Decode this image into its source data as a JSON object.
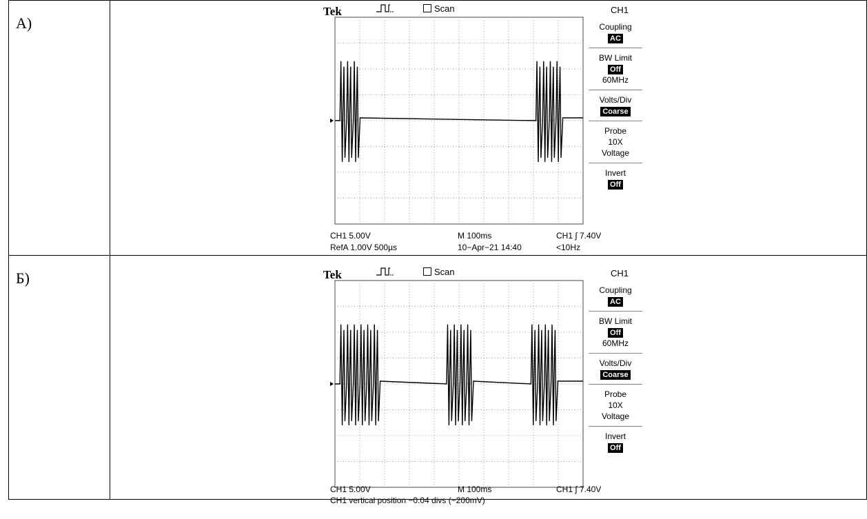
{
  "rows": [
    {
      "label": "А)",
      "brand": "Tek",
      "scan": "Scan",
      "channel": "CH1",
      "side": {
        "coupling_label": "Coupling",
        "coupling_value": "AC",
        "bw_label": "BW Limit",
        "bw_value": "Off",
        "bw_freq": "60MHz",
        "volts_label": "Volts/Div",
        "volts_value": "Coarse",
        "probe_label": "Probe",
        "probe_value": "10X",
        "probe_type": "Voltage",
        "invert_label": "Invert",
        "invert_value": "Off"
      },
      "ch1_scale": "CH1  5.00V",
      "ref": "RefA 1.00V 500µs",
      "timebase": "M 100ms",
      "date": "10−Apr−21 14:40",
      "trigger": "CH1 ∫ 7.40V",
      "freq": "<10Hz",
      "bursts": [
        {
          "start": 0.2,
          "pulses": 3
        },
        {
          "start": 8.1,
          "pulses": 4
        }
      ]
    },
    {
      "label": "Б)",
      "brand": "Tek",
      "scan": "Scan",
      "channel": "CH1",
      "side": {
        "coupling_label": "Coupling",
        "coupling_value": "AC",
        "bw_label": "BW Limit",
        "bw_value": "Off",
        "bw_freq": "60MHz",
        "volts_label": "Volts/Div",
        "volts_value": "Coarse",
        "probe_label": "Probe",
        "probe_value": "10X",
        "probe_type": "Voltage",
        "invert_label": "Invert",
        "invert_value": "Off"
      },
      "ch1_scale": "CH1  5.00V",
      "timebase": "M 100ms",
      "trigger": "CH1 ∫ 7.40V",
      "status": "CH1 vertical position −0.04 divs (−200mV)",
      "bursts": [
        {
          "start": 0.2,
          "pulses": 6
        },
        {
          "start": 4.5,
          "pulses": 4
        },
        {
          "start": 7.9,
          "pulses": 4
        }
      ]
    }
  ]
}
